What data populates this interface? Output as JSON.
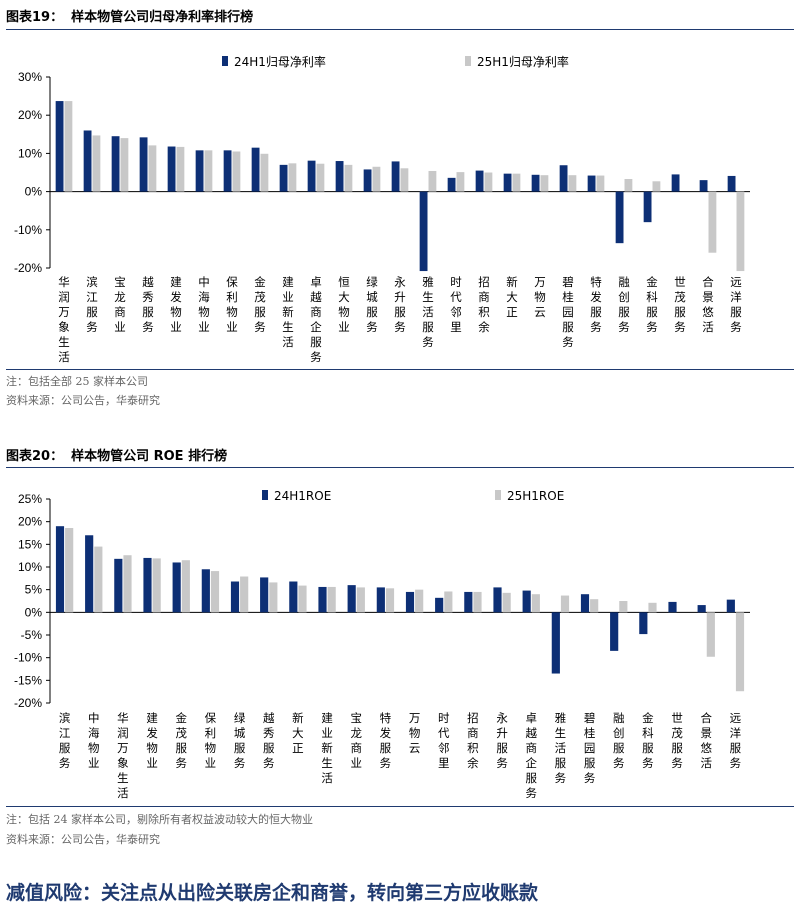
{
  "chart_data": [
    {
      "type": "bar",
      "title_prefix": "图表19：",
      "title": "样本物管公司归母净利率排行榜",
      "categories": [
        "华润万象生活",
        "滨江服务",
        "宝龙商业",
        "越秀服务",
        "建发物业",
        "中海物业",
        "保利物业",
        "金茂服务",
        "建业新生活",
        "卓越商企服务",
        "恒大物业",
        "绿城服务",
        "永升服务",
        "雅生活服务",
        "时代邻里",
        "招商积余",
        "新大正",
        "万物云",
        "碧桂园服务",
        "特发服务",
        "融创服务",
        "金科服务",
        "世茂服务",
        "合景悠活",
        "远洋服务"
      ],
      "series": [
        {
          "name": "24H1归母净利率",
          "color": "#0d2f75",
          "values": [
            23.7,
            16.0,
            14.5,
            14.2,
            11.8,
            10.8,
            10.8,
            11.5,
            7.0,
            8.1,
            8.0,
            5.8,
            7.9,
            -20.8,
            3.6,
            5.5,
            4.7,
            4.4,
            6.9,
            4.2,
            -13.5,
            -8.0,
            4.5,
            3.0,
            4.1
          ]
        },
        {
          "name": "25H1归母净利率",
          "color": "#c8c8c8",
          "values": [
            23.7,
            14.7,
            14.0,
            12.1,
            11.7,
            10.8,
            10.5,
            9.9,
            7.4,
            7.3,
            7.0,
            6.5,
            6.1,
            5.4,
            5.1,
            5.0,
            4.7,
            4.3,
            4.3,
            4.2,
            3.3,
            2.7,
            0.0,
            -16.0,
            -20.8
          ]
        }
      ],
      "ylim": [
        -20,
        30
      ],
      "yticks": [
        "-20%",
        "-10%",
        "0%",
        "10%",
        "20%",
        "30%"
      ],
      "ytick_values": [
        -20,
        -10,
        0,
        10,
        20,
        30
      ],
      "notes": [
        "注：包括全部 25 家样本公司",
        "资料来源：公司公告，华泰研究"
      ]
    },
    {
      "type": "bar",
      "title_prefix": "图表20：",
      "title": "样本物管公司 ROE 排行榜",
      "categories": [
        "滨江服务",
        "中海物业",
        "华润万象生活",
        "建发物业",
        "金茂服务",
        "保利物业",
        "绿城服务",
        "越秀服务",
        "新大正",
        "建业新生活",
        "宝龙商业",
        "特发服务",
        "万物云",
        "时代邻里",
        "招商积余",
        "永升服务",
        "卓越商企服务",
        "雅生活服务",
        "碧桂园服务",
        "融创服务",
        "金科服务",
        "世茂服务",
        "合景悠活",
        "远洋服务"
      ],
      "series": [
        {
          "name": "24H1ROE",
          "color": "#0d2f75",
          "values": [
            19.0,
            17.0,
            11.8,
            12.0,
            11.0,
            9.5,
            6.8,
            7.7,
            6.8,
            5.6,
            6.0,
            5.5,
            4.5,
            3.2,
            4.5,
            5.5,
            4.8,
            -13.5,
            4.0,
            -8.5,
            -4.8,
            2.3,
            1.6,
            2.8
          ]
        },
        {
          "name": "25H1ROE",
          "color": "#c8c8c8",
          "values": [
            18.6,
            14.5,
            12.6,
            11.9,
            11.5,
            9.1,
            7.9,
            6.6,
            5.9,
            5.6,
            5.5,
            5.3,
            5.0,
            4.6,
            4.5,
            4.3,
            4.0,
            3.7,
            2.9,
            2.5,
            2.1,
            0.0,
            -9.8,
            -17.4
          ]
        }
      ],
      "ylim": [
        -20,
        25
      ],
      "yticks": [
        "-20%",
        "-15%",
        "-10%",
        "-5%",
        "0%",
        "5%",
        "10%",
        "15%",
        "20%",
        "25%"
      ],
      "ytick_values": [
        -20,
        -15,
        -10,
        -5,
        0,
        5,
        10,
        15,
        20,
        25
      ],
      "notes": [
        "注：包括 24 家样本公司，剔除所有者权益波动较大的恒大物业",
        "资料来源：公司公告，华泰研究"
      ]
    }
  ],
  "headline": "减值风险：关注点从出险关联房企和商誉，转向第三方应收账款"
}
